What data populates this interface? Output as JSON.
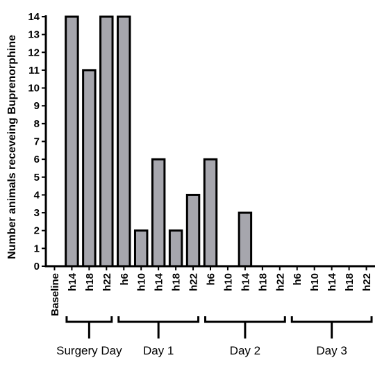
{
  "chart_data": {
    "type": "bar",
    "ylabel": "Number animals receveing Buprenorphine",
    "xlabel": "",
    "ylim": [
      0,
      14
    ],
    "yticks": [
      "0",
      "1",
      "2",
      "3",
      "4",
      "5",
      "6",
      "7",
      "8",
      "9",
      "10",
      "11",
      "12",
      "13",
      "14"
    ],
    "categories": [
      "Baseline",
      "h14",
      "h18",
      "h22",
      "h6",
      "h10",
      "h14",
      "h18",
      "h22",
      "h6",
      "h10",
      "h14",
      "h18",
      "h22",
      "h6",
      "h10",
      "h14",
      "h18",
      "h22"
    ],
    "values": [
      0,
      14,
      11,
      14,
      14,
      2,
      6,
      2,
      4,
      6,
      0,
      3,
      0,
      0,
      0,
      0,
      0,
      0,
      0
    ],
    "groups": [
      {
        "label": "Surgery Day",
        "start": 1,
        "end": 3
      },
      {
        "label": "Day 1",
        "start": 4,
        "end": 8
      },
      {
        "label": "Day 2",
        "start": 9,
        "end": 13
      },
      {
        "label": "Day 3",
        "start": 14,
        "end": 18
      }
    ],
    "bar_color": "#a6a6ad",
    "grid": false
  }
}
